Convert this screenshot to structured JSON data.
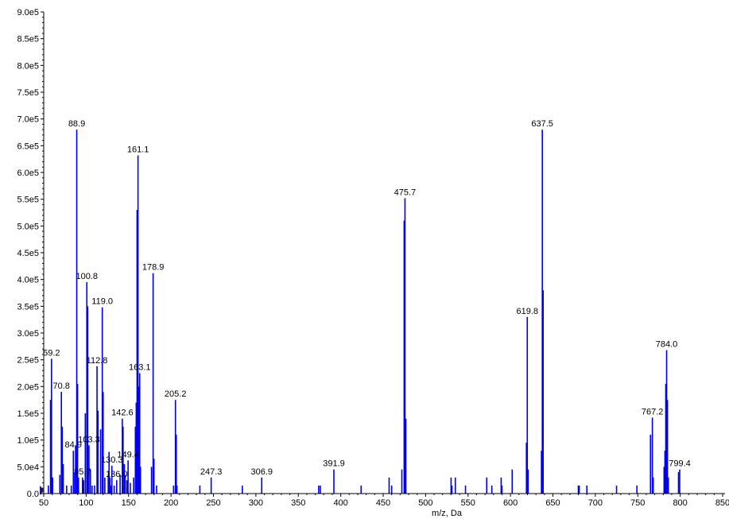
{
  "chart_data": {
    "type": "bar",
    "title": "",
    "xlabel": "m/z, Da",
    "ylabel": "",
    "xlim": [
      50,
      850
    ],
    "ylim": [
      0,
      900000
    ],
    "grid": false,
    "bar_color": "#0000ee",
    "x_ticks": [
      "50",
      "100",
      "150",
      "200",
      "250",
      "300",
      "350",
      "400",
      "450",
      "500",
      "550",
      "600",
      "650",
      "700",
      "750",
      "800",
      "850"
    ],
    "y_ticks": [
      "0.0",
      "5.0e4",
      "1.0e5",
      "1.5e5",
      "2.0e5",
      "2.5e5",
      "3.0e5",
      "3.5e5",
      "4.0e5",
      "4.5e5",
      "5.0e5",
      "5.5e5",
      "6.0e5",
      "6.5e5",
      "7.0e5",
      "7.5e5",
      "8.0e5",
      "8.5e5",
      "9.0e5"
    ],
    "peaks": [
      {
        "x": 55.5,
        "y": 15000
      },
      {
        "x": 58.0,
        "y": 175000
      },
      {
        "x": 59.2,
        "y": 252000,
        "label": "59.2"
      },
      {
        "x": 60.5,
        "y": 30000
      },
      {
        "x": 69.0,
        "y": 35000
      },
      {
        "x": 70.8,
        "y": 190000,
        "label": "70.8"
      },
      {
        "x": 71.8,
        "y": 125000
      },
      {
        "x": 73.0,
        "y": 55000
      },
      {
        "x": 77.0,
        "y": 15000
      },
      {
        "x": 82.5,
        "y": 15000
      },
      {
        "x": 84.9,
        "y": 80000,
        "label": "84.9"
      },
      {
        "x": 86.5,
        "y": 40000
      },
      {
        "x": 87.5,
        "y": 90000
      },
      {
        "x": 88.9,
        "y": 680000,
        "label": "88.9"
      },
      {
        "x": 89.9,
        "y": 205000
      },
      {
        "x": 91.0,
        "y": 30000
      },
      {
        "x": 95.7,
        "y": 30000,
        "label": "95.7"
      },
      {
        "x": 97.0,
        "y": 25000
      },
      {
        "x": 99.0,
        "y": 150000
      },
      {
        "x": 100.8,
        "y": 395000,
        "label": "100.8"
      },
      {
        "x": 101.8,
        "y": 350000
      },
      {
        "x": 103.3,
        "y": 90000,
        "label": "103.3"
      },
      {
        "x": 105.0,
        "y": 45000
      },
      {
        "x": 107.0,
        "y": 15000
      },
      {
        "x": 110.0,
        "y": 15000
      },
      {
        "x": 112.8,
        "y": 238000,
        "label": "112.8"
      },
      {
        "x": 114.0,
        "y": 155000
      },
      {
        "x": 117.0,
        "y": 120000
      },
      {
        "x": 119.0,
        "y": 348000,
        "label": "119.0"
      },
      {
        "x": 120.0,
        "y": 190000
      },
      {
        "x": 122.0,
        "y": 30000
      },
      {
        "x": 126.0,
        "y": 35000
      },
      {
        "x": 127.0,
        "y": 78000
      },
      {
        "x": 128.0,
        "y": 30000
      },
      {
        "x": 129.0,
        "y": 15000
      },
      {
        "x": 130.3,
        "y": 52000,
        "label": "130.3"
      },
      {
        "x": 133.0,
        "y": 15000
      },
      {
        "x": 136.0,
        "y": 25000,
        "label": "136.0"
      },
      {
        "x": 140.0,
        "y": 35000
      },
      {
        "x": 142.6,
        "y": 140000,
        "label": "142.6"
      },
      {
        "x": 143.5,
        "y": 125000
      },
      {
        "x": 145.0,
        "y": 55000
      },
      {
        "x": 146.0,
        "y": 35000
      },
      {
        "x": 148.0,
        "y": 25000
      },
      {
        "x": 149.4,
        "y": 62000,
        "label": "149.4"
      },
      {
        "x": 152.0,
        "y": 20000
      },
      {
        "x": 156.0,
        "y": 30000
      },
      {
        "x": 158.0,
        "y": 125000
      },
      {
        "x": 159.0,
        "y": 170000
      },
      {
        "x": 160.0,
        "y": 530000
      },
      {
        "x": 161.1,
        "y": 632000,
        "label": "161.1"
      },
      {
        "x": 162.0,
        "y": 200000
      },
      {
        "x": 163.1,
        "y": 225000,
        "label": "163.1"
      },
      {
        "x": 164.0,
        "y": 50000
      },
      {
        "x": 177.0,
        "y": 50000
      },
      {
        "x": 178.9,
        "y": 412000,
        "label": "178.9"
      },
      {
        "x": 179.9,
        "y": 65000
      },
      {
        "x": 183.0,
        "y": 15000
      },
      {
        "x": 203.0,
        "y": 15000
      },
      {
        "x": 205.2,
        "y": 175000,
        "label": "205.2"
      },
      {
        "x": 206.2,
        "y": 110000
      },
      {
        "x": 207.0,
        "y": 15000
      },
      {
        "x": 234.0,
        "y": 15000
      },
      {
        "x": 247.3,
        "y": 30000,
        "label": "247.3"
      },
      {
        "x": 284.0,
        "y": 15000
      },
      {
        "x": 306.9,
        "y": 30000,
        "label": "306.9"
      },
      {
        "x": 374.0,
        "y": 15000
      },
      {
        "x": 376.0,
        "y": 15000
      },
      {
        "x": 391.9,
        "y": 45000,
        "label": "391.9"
      },
      {
        "x": 424.0,
        "y": 15000
      },
      {
        "x": 457.0,
        "y": 30000
      },
      {
        "x": 460.0,
        "y": 15000
      },
      {
        "x": 472.0,
        "y": 45000
      },
      {
        "x": 474.7,
        "y": 510000
      },
      {
        "x": 475.7,
        "y": 552000,
        "label": "475.7"
      },
      {
        "x": 476.7,
        "y": 140000
      },
      {
        "x": 530.0,
        "y": 30000
      },
      {
        "x": 531.0,
        "y": 15000
      },
      {
        "x": 535.0,
        "y": 30000
      },
      {
        "x": 547.0,
        "y": 15000
      },
      {
        "x": 572.0,
        "y": 30000
      },
      {
        "x": 578.0,
        "y": 15000
      },
      {
        "x": 589.0,
        "y": 30000
      },
      {
        "x": 590.0,
        "y": 15000
      },
      {
        "x": 602.0,
        "y": 45000
      },
      {
        "x": 618.8,
        "y": 95000
      },
      {
        "x": 619.8,
        "y": 330000,
        "label": "619.8"
      },
      {
        "x": 620.8,
        "y": 45000
      },
      {
        "x": 636.5,
        "y": 80000
      },
      {
        "x": 637.5,
        "y": 680000,
        "label": "637.5"
      },
      {
        "x": 638.5,
        "y": 380000
      },
      {
        "x": 680.0,
        "y": 15000
      },
      {
        "x": 681.0,
        "y": 15000
      },
      {
        "x": 690.0,
        "y": 15000
      },
      {
        "x": 725.0,
        "y": 15000
      },
      {
        "x": 749.0,
        "y": 15000
      },
      {
        "x": 765.0,
        "y": 110000
      },
      {
        "x": 767.2,
        "y": 142000,
        "label": "767.2"
      },
      {
        "x": 768.2,
        "y": 30000
      },
      {
        "x": 781.0,
        "y": 50000
      },
      {
        "x": 782.0,
        "y": 80000
      },
      {
        "x": 783.0,
        "y": 205000
      },
      {
        "x": 784.0,
        "y": 268000,
        "label": "784.0"
      },
      {
        "x": 785.0,
        "y": 175000
      },
      {
        "x": 786.0,
        "y": 30000
      },
      {
        "x": 798.0,
        "y": 40000
      },
      {
        "x": 799.4,
        "y": 45000,
        "label": "799.4"
      }
    ]
  }
}
